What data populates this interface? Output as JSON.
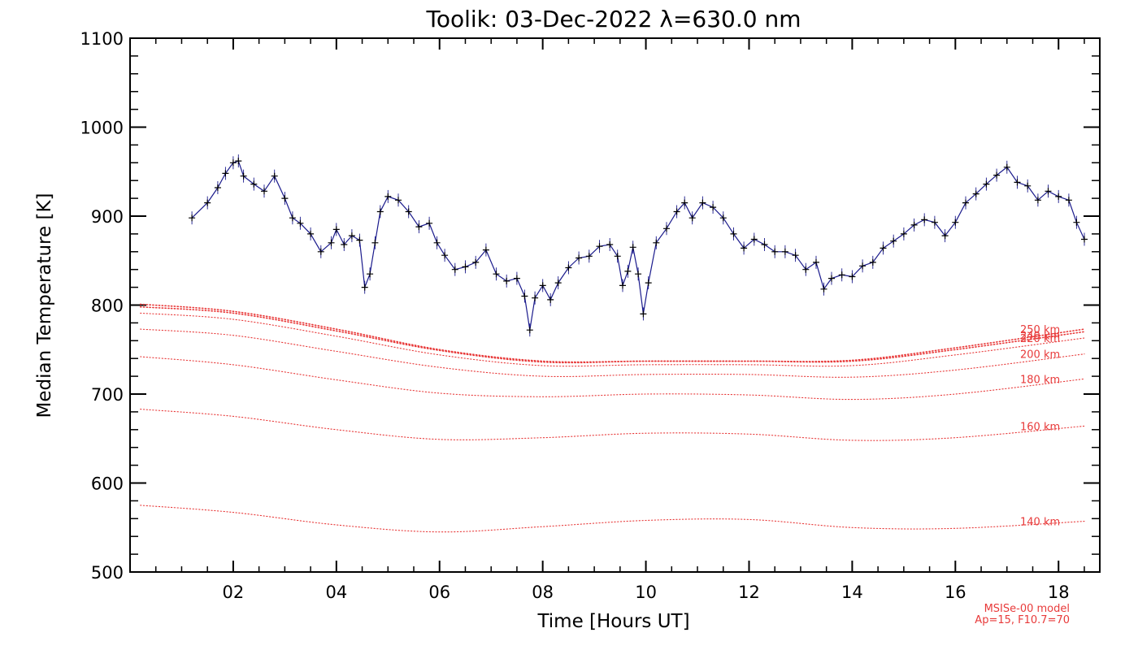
{
  "chart_data": {
    "type": "line",
    "title": "Toolik: 03-Dec-2022 λ=630.0 nm",
    "xlabel": "Time [Hours UT]",
    "ylabel": "Median Temperature [K]",
    "xlim": [
      0.0,
      18.8
    ],
    "ylim": [
      500,
      1100
    ],
    "x_ticks": [
      2,
      4,
      6,
      8,
      10,
      12,
      14,
      16,
      18
    ],
    "x_tick_labels": [
      "02",
      "04",
      "06",
      "08",
      "10",
      "12",
      "14",
      "16",
      "18"
    ],
    "y_ticks": [
      500,
      600,
      700,
      800,
      900,
      1000,
      1100
    ],
    "y_tick_labels": [
      "500",
      "600",
      "700",
      "800",
      "900",
      "1000",
      "1100"
    ],
    "grid": false,
    "note_lines": [
      "MSISe-00 model",
      "Ap=15, F10.7=70"
    ],
    "observed": {
      "color": "#1a1a8c",
      "marker_color": "#000000",
      "points": [
        [
          1.2,
          898
        ],
        [
          1.5,
          915
        ],
        [
          1.7,
          932
        ],
        [
          1.85,
          948
        ],
        [
          2.0,
          960
        ],
        [
          2.1,
          962
        ],
        [
          2.2,
          945
        ],
        [
          2.4,
          936
        ],
        [
          2.6,
          928
        ],
        [
          2.8,
          945
        ],
        [
          3.0,
          920
        ],
        [
          3.15,
          898
        ],
        [
          3.3,
          892
        ],
        [
          3.5,
          880
        ],
        [
          3.7,
          860
        ],
        [
          3.9,
          870
        ],
        [
          4.0,
          885
        ],
        [
          4.15,
          868
        ],
        [
          4.3,
          878
        ],
        [
          4.45,
          873
        ],
        [
          4.55,
          820
        ],
        [
          4.65,
          835
        ],
        [
          4.75,
          870
        ],
        [
          4.85,
          905
        ],
        [
          5.0,
          922
        ],
        [
          5.2,
          918
        ],
        [
          5.4,
          905
        ],
        [
          5.6,
          888
        ],
        [
          5.8,
          892
        ],
        [
          5.95,
          870
        ],
        [
          6.1,
          856
        ],
        [
          6.3,
          840
        ],
        [
          6.5,
          843
        ],
        [
          6.7,
          848
        ],
        [
          6.9,
          862
        ],
        [
          7.1,
          835
        ],
        [
          7.3,
          827
        ],
        [
          7.5,
          830
        ],
        [
          7.65,
          810
        ],
        [
          7.75,
          772
        ],
        [
          7.85,
          808
        ],
        [
          8.0,
          822
        ],
        [
          8.15,
          806
        ],
        [
          8.3,
          825
        ],
        [
          8.5,
          842
        ],
        [
          8.7,
          853
        ],
        [
          8.9,
          855
        ],
        [
          9.1,
          866
        ],
        [
          9.3,
          868
        ],
        [
          9.45,
          855
        ],
        [
          9.55,
          822
        ],
        [
          9.65,
          838
        ],
        [
          9.75,
          865
        ],
        [
          9.85,
          835
        ],
        [
          9.95,
          790
        ],
        [
          10.05,
          825
        ],
        [
          10.2,
          870
        ],
        [
          10.4,
          886
        ],
        [
          10.6,
          905
        ],
        [
          10.75,
          915
        ],
        [
          10.9,
          898
        ],
        [
          11.1,
          915
        ],
        [
          11.3,
          910
        ],
        [
          11.5,
          898
        ],
        [
          11.7,
          880
        ],
        [
          11.9,
          864
        ],
        [
          12.1,
          874
        ],
        [
          12.3,
          868
        ],
        [
          12.5,
          860
        ],
        [
          12.7,
          860
        ],
        [
          12.9,
          856
        ],
        [
          13.1,
          840
        ],
        [
          13.3,
          848
        ],
        [
          13.45,
          818
        ],
        [
          13.6,
          830
        ],
        [
          13.8,
          834
        ],
        [
          14.0,
          832
        ],
        [
          14.2,
          844
        ],
        [
          14.4,
          848
        ],
        [
          14.6,
          864
        ],
        [
          14.8,
          872
        ],
        [
          15.0,
          880
        ],
        [
          15.2,
          890
        ],
        [
          15.4,
          896
        ],
        [
          15.6,
          893
        ],
        [
          15.8,
          878
        ],
        [
          16.0,
          893
        ],
        [
          16.2,
          915
        ],
        [
          16.4,
          925
        ],
        [
          16.6,
          936
        ],
        [
          16.8,
          946
        ],
        [
          17.0,
          955
        ],
        [
          17.2,
          938
        ],
        [
          17.4,
          934
        ],
        [
          17.6,
          918
        ],
        [
          17.8,
          928
        ],
        [
          18.0,
          922
        ],
        [
          18.2,
          918
        ],
        [
          18.35,
          893
        ],
        [
          18.5,
          874
        ]
      ]
    },
    "model": {
      "color": "#e83a3a",
      "series": [
        {
          "name": "250 km",
          "points": [
            [
              0.2,
              801
            ],
            [
              2.0,
              793
            ],
            [
              4.0,
              773
            ],
            [
              6.0,
              750
            ],
            [
              8.0,
              737
            ],
            [
              10.0,
              737
            ],
            [
              12.0,
              737
            ],
            [
              14.0,
              738
            ],
            [
              16.0,
              752
            ],
            [
              18.5,
              773
            ]
          ]
        },
        {
          "name": "240 km",
          "points": [
            [
              0.2,
              798
            ],
            [
              2.0,
              791
            ],
            [
              4.0,
              771
            ],
            [
              6.0,
              749
            ],
            [
              8.0,
              736
            ],
            [
              10.0,
              737
            ],
            [
              12.0,
              737
            ],
            [
              14.0,
              737
            ],
            [
              16.0,
              750
            ],
            [
              18.5,
              770
            ]
          ]
        },
        {
          "name": "220 km",
          "points": [
            [
              0.2,
              791
            ],
            [
              2.0,
              784
            ],
            [
              4.0,
              765
            ],
            [
              6.0,
              744
            ],
            [
              8.0,
              732
            ],
            [
              10.0,
              733
            ],
            [
              12.0,
              733
            ],
            [
              14.0,
              732
            ],
            [
              16.0,
              744
            ],
            [
              18.5,
              763
            ]
          ]
        },
        {
          "name": "200 km",
          "points": [
            [
              0.2,
              773
            ],
            [
              2.0,
              766
            ],
            [
              4.0,
              748
            ],
            [
              6.0,
              730
            ],
            [
              8.0,
              720
            ],
            [
              10.0,
              722
            ],
            [
              12.0,
              722
            ],
            [
              14.0,
              719
            ],
            [
              16.0,
              727
            ],
            [
              18.5,
              745
            ]
          ]
        },
        {
          "name": "180 km",
          "points": [
            [
              0.2,
              742
            ],
            [
              2.0,
              733
            ],
            [
              4.0,
              716
            ],
            [
              6.0,
              701
            ],
            [
              8.0,
              697
            ],
            [
              10.0,
              700
            ],
            [
              12.0,
              699
            ],
            [
              14.0,
              694
            ],
            [
              16.0,
              700
            ],
            [
              18.5,
              717
            ]
          ]
        },
        {
          "name": "160 km",
          "points": [
            [
              0.2,
              683
            ],
            [
              2.0,
              675
            ],
            [
              4.0,
              660
            ],
            [
              6.0,
              649
            ],
            [
              8.0,
              651
            ],
            [
              10.0,
              656
            ],
            [
              12.0,
              655
            ],
            [
              14.0,
              648
            ],
            [
              16.0,
              651
            ],
            [
              18.5,
              664
            ]
          ]
        },
        {
          "name": "140 km",
          "points": [
            [
              0.2,
              575
            ],
            [
              2.0,
              567
            ],
            [
              4.0,
              553
            ],
            [
              6.0,
              545
            ],
            [
              8.0,
              551
            ],
            [
              10.0,
              558
            ],
            [
              12.0,
              559
            ],
            [
              14.0,
              550
            ],
            [
              16.0,
              549
            ],
            [
              18.5,
              557
            ]
          ]
        }
      ]
    }
  }
}
